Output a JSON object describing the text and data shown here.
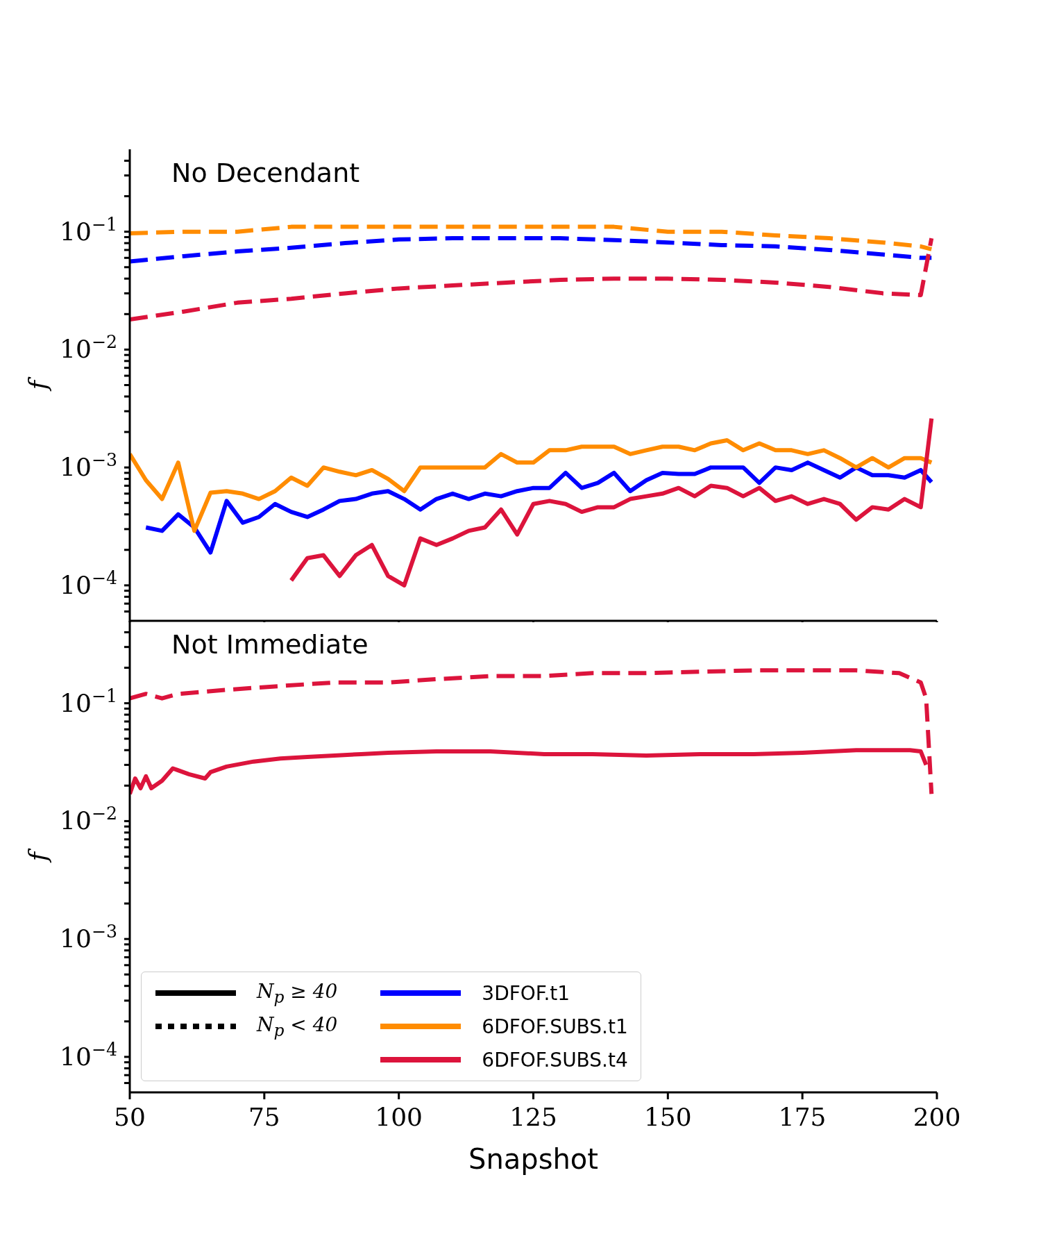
{
  "chart_data": [
    {
      "type": "line",
      "title": "No Decendant",
      "ylabel": "f",
      "log": true,
      "legend": "bottom left",
      "tick_labels": "y",
      "annotations": [
        "N$_{p}$ ≥ 40",
        "N$_{p}$ < 40"
      ],
      "xlim": [
        50,
        200
      ],
      "xticks": [
        50,
        75,
        100,
        125,
        150,
        175,
        200
      ],
      "ylim": [
        5e-05,
        0.5
      ],
      "yticks": [
        {
          "value": 6e-05,
          "label": null
        },
        {
          "value": 7e-05,
          "label": null
        },
        {
          "value": 8e-05,
          "label": null
        },
        {
          "value": 9e-05,
          "label": null
        },
        {
          "value": 0.0001,
          "label": "10$^{−4}$"
        },
        {
          "value": 0.0002,
          "label": null
        },
        {
          "value": 0.0003,
          "label": null
        },
        {
          "value": 0.0004,
          "label": null
        },
        {
          "value": 0.0005,
          "label": null
        },
        {
          "value": 0.0006,
          "label": null
        },
        {
          "value": 0.0007,
          "label": null
        },
        {
          "value": 0.0008,
          "label": null
        },
        {
          "value": 0.0009,
          "label": null
        },
        {
          "value": 0.001,
          "label": "10$^{−3}$"
        },
        {
          "value": 0.002,
          "label": null
        },
        {
          "value": 0.003,
          "label": null
        },
        {
          "value": 0.004,
          "label": null
        },
        {
          "value": 0.005,
          "label": null
        },
        {
          "value": 0.006,
          "label": null
        },
        {
          "value": 0.007,
          "label": null
        },
        {
          "value": 0.008,
          "label": null
        },
        {
          "value": 0.009,
          "label": null
        },
        {
          "value": 0.01,
          "label": "10$^{−2}$"
        },
        {
          "value": 0.02,
          "label": null
        },
        {
          "value": 0.03,
          "label": null
        },
        {
          "value": 0.04,
          "label": null
        },
        {
          "value": 0.05,
          "label": null
        },
        {
          "value": 0.06,
          "label": null
        },
        {
          "value": 0.07,
          "label": null
        },
        {
          "value": 0.08,
          "label": null
        },
        {
          "value": 0.09,
          "label": null
        },
        {
          "value": 0.1,
          "label": "10$^{−1}$"
        },
        {
          "value": 0.2,
          "label": null
        },
        {
          "value": 0.3,
          "label": null
        },
        {
          "value": 0.4,
          "label": null
        }
      ],
      "series": [
        {
          "color": "#ff8c00",
          "line_style": "dashed",
          "x": [
            50,
            60,
            70,
            80,
            90,
            100,
            110,
            120,
            130,
            140,
            150,
            160,
            170,
            180,
            190,
            197,
            199
          ],
          "values": [
            0.097,
            0.1,
            0.1,
            0.11,
            0.11,
            0.11,
            0.11,
            0.11,
            0.11,
            0.11,
            0.1,
            0.1,
            0.093,
            0.088,
            0.081,
            0.075,
            0.071
          ]
        },
        {
          "color": "#0000ff",
          "line_style": "dashed",
          "x": [
            50,
            60,
            70,
            80,
            90,
            100,
            110,
            120,
            130,
            140,
            150,
            160,
            170,
            180,
            190,
            197,
            199
          ],
          "values": [
            0.056,
            0.062,
            0.068,
            0.073,
            0.08,
            0.086,
            0.088,
            0.088,
            0.088,
            0.085,
            0.081,
            0.077,
            0.075,
            0.07,
            0.064,
            0.06,
            0.06
          ]
        },
        {
          "color": "#dc143c",
          "line_style": "dashed",
          "x": [
            50,
            60,
            70,
            80,
            90,
            100,
            110,
            120,
            130,
            140,
            150,
            160,
            170,
            180,
            190,
            197,
            199
          ],
          "values": [
            0.018,
            0.021,
            0.025,
            0.027,
            0.03,
            0.033,
            0.035,
            0.037,
            0.039,
            0.04,
            0.04,
            0.039,
            0.037,
            0.034,
            0.03,
            0.029,
            0.088
          ]
        },
        {
          "name": "3DFOF.t1",
          "color": "#0000ff",
          "line_style": "solid",
          "x": [
            53,
            56,
            59,
            62,
            65,
            68,
            71,
            74,
            77,
            80,
            83,
            86,
            89,
            92,
            95,
            98,
            101,
            104,
            107,
            110,
            113,
            116,
            119,
            122,
            125,
            128,
            131,
            134,
            137,
            140,
            143,
            146,
            149,
            152,
            155,
            158,
            161,
            164,
            167,
            170,
            173,
            176,
            179,
            182,
            185,
            188,
            191,
            194,
            197,
            199
          ],
          "values": [
            0.00031,
            0.00029,
            0.0004,
            0.00031,
            0.00019,
            0.00052,
            0.00034,
            0.00038,
            0.00049,
            0.00042,
            0.00038,
            0.00044,
            0.00052,
            0.00054,
            0.0006,
            0.00063,
            0.00054,
            0.00044,
            0.00054,
            0.0006,
            0.00054,
            0.0006,
            0.00057,
            0.00063,
            0.00067,
            0.00067,
            0.0009,
            0.00067,
            0.00074,
            0.0009,
            0.00063,
            0.00078,
            0.0009,
            0.00088,
            0.00088,
            0.001,
            0.001,
            0.001,
            0.00074,
            0.001,
            0.00095,
            0.0011,
            0.00095,
            0.00082,
            0.001,
            0.00086,
            0.00086,
            0.00082,
            0.00095,
            0.00075
          ]
        },
        {
          "name": "6DFOF.SUBS.t1",
          "color": "#ff8c00",
          "line_style": "solid",
          "x": [
            50,
            53,
            56,
            59,
            62,
            65,
            68,
            71,
            74,
            77,
            80,
            83,
            86,
            89,
            92,
            95,
            98,
            101,
            104,
            107,
            110,
            113,
            116,
            119,
            122,
            125,
            128,
            131,
            134,
            137,
            140,
            143,
            146,
            149,
            152,
            155,
            158,
            161,
            164,
            167,
            170,
            173,
            176,
            179,
            182,
            185,
            188,
            191,
            194,
            197,
            199
          ],
          "values": [
            0.0013,
            0.00078,
            0.00054,
            0.0011,
            0.00029,
            0.00061,
            0.00063,
            0.0006,
            0.00054,
            0.00063,
            0.00082,
            0.0007,
            0.001,
            0.00092,
            0.00086,
            0.00095,
            0.0008,
            0.00063,
            0.001,
            0.001,
            0.001,
            0.001,
            0.001,
            0.0013,
            0.0011,
            0.0011,
            0.0014,
            0.0014,
            0.0015,
            0.0015,
            0.0015,
            0.0013,
            0.0014,
            0.0015,
            0.0015,
            0.0014,
            0.0016,
            0.0017,
            0.0014,
            0.0016,
            0.0014,
            0.0014,
            0.0013,
            0.0014,
            0.0012,
            0.001,
            0.0012,
            0.001,
            0.0012,
            0.0012,
            0.0011
          ]
        },
        {
          "name": "6DFOF.SUBS.t4",
          "color": "#dc143c",
          "line_style": "solid",
          "x": [
            80,
            83,
            86,
            89,
            92,
            95,
            98,
            101,
            104,
            107,
            110,
            113,
            116,
            119,
            122,
            125,
            128,
            131,
            134,
            137,
            140,
            143,
            146,
            149,
            152,
            155,
            158,
            161,
            164,
            167,
            170,
            173,
            176,
            179,
            182,
            185,
            188,
            191,
            194,
            197,
            199
          ],
          "values": [
            0.00011,
            0.00017,
            0.00018,
            0.00012,
            0.00018,
            0.00022,
            0.00012,
            0.0001,
            0.00025,
            0.00022,
            0.00025,
            0.00029,
            0.00031,
            0.00044,
            0.00027,
            0.00049,
            0.00052,
            0.00049,
            0.00042,
            0.00046,
            0.00046,
            0.00054,
            0.00057,
            0.0006,
            0.00067,
            0.00057,
            0.0007,
            0.00067,
            0.00057,
            0.00067,
            0.00052,
            0.00057,
            0.00049,
            0.00054,
            0.00049,
            0.00036,
            0.00046,
            0.00044,
            0.00054,
            0.00046,
            0.0026
          ]
        }
      ]
    },
    {
      "type": "line",
      "title": "Not Immediate",
      "ylabel": "f",
      "xlabel": "Snapshot",
      "log": true,
      "xlim": [
        50,
        200
      ],
      "xticks": [
        50,
        75,
        100,
        125,
        150,
        175,
        200
      ],
      "ylim": [
        5e-05,
        0.5
      ],
      "yticks": [
        {
          "value": 6e-05,
          "label": null
        },
        {
          "value": 7e-05,
          "label": null
        },
        {
          "value": 8e-05,
          "label": null
        },
        {
          "value": 9e-05,
          "label": null
        },
        {
          "value": 0.0001,
          "label": "10$^{−4}$"
        },
        {
          "value": 0.0002,
          "label": null
        },
        {
          "value": 0.0003,
          "label": null
        },
        {
          "value": 0.0004,
          "label": null
        },
        {
          "value": 0.0005,
          "label": null
        },
        {
          "value": 0.0006,
          "label": null
        },
        {
          "value": 0.0007,
          "label": null
        },
        {
          "value": 0.0008,
          "label": null
        },
        {
          "value": 0.0009,
          "label": null
        },
        {
          "value": 0.001,
          "label": "10$^{−3}$"
        },
        {
          "value": 0.002,
          "label": null
        },
        {
          "value": 0.003,
          "label": null
        },
        {
          "value": 0.004,
          "label": null
        },
        {
          "value": 0.005,
          "label": null
        },
        {
          "value": 0.006,
          "label": null
        },
        {
          "value": 0.007,
          "label": null
        },
        {
          "value": 0.008,
          "label": null
        },
        {
          "value": 0.009,
          "label": null
        },
        {
          "value": 0.01,
          "label": "10$^{−2}$"
        },
        {
          "value": 0.02,
          "label": null
        },
        {
          "value": 0.03,
          "label": null
        },
        {
          "value": 0.04,
          "label": null
        },
        {
          "value": 0.05,
          "label": null
        },
        {
          "value": 0.06,
          "label": null
        },
        {
          "value": 0.07,
          "label": null
        },
        {
          "value": 0.08,
          "label": null
        },
        {
          "value": 0.09,
          "label": null
        },
        {
          "value": 0.1,
          "label": "10$^{−1}$"
        },
        {
          "value": 0.2,
          "label": null
        },
        {
          "value": 0.3,
          "label": null
        },
        {
          "value": 0.4,
          "label": null
        }
      ],
      "series": [
        {
          "color": "#dc143c",
          "line_style": "dashed",
          "x": [
            50,
            53,
            56,
            59,
            68,
            78,
            88,
            98,
            107,
            117,
            127,
            136,
            146,
            166,
            175,
            185,
            193,
            197,
            198,
            199
          ],
          "values": [
            0.11,
            0.12,
            0.11,
            0.12,
            0.13,
            0.14,
            0.15,
            0.15,
            0.16,
            0.17,
            0.17,
            0.18,
            0.18,
            0.19,
            0.19,
            0.19,
            0.18,
            0.15,
            0.11,
            0.017
          ]
        },
        {
          "color": "#dc143c",
          "line_style": "solid",
          "x": [
            50,
            51,
            52,
            53,
            54,
            56,
            58,
            61,
            64,
            65,
            68,
            73,
            78,
            83,
            88,
            93,
            98,
            107,
            117,
            127,
            136,
            146,
            156,
            166,
            175,
            185,
            195,
            197,
            198
          ],
          "values": [
            0.017,
            0.023,
            0.019,
            0.024,
            0.019,
            0.022,
            0.028,
            0.025,
            0.023,
            0.026,
            0.029,
            0.032,
            0.034,
            0.035,
            0.036,
            0.037,
            0.038,
            0.039,
            0.039,
            0.037,
            0.037,
            0.036,
            0.037,
            0.037,
            0.038,
            0.04,
            0.04,
            0.039,
            0.03
          ]
        }
      ]
    }
  ]
}
